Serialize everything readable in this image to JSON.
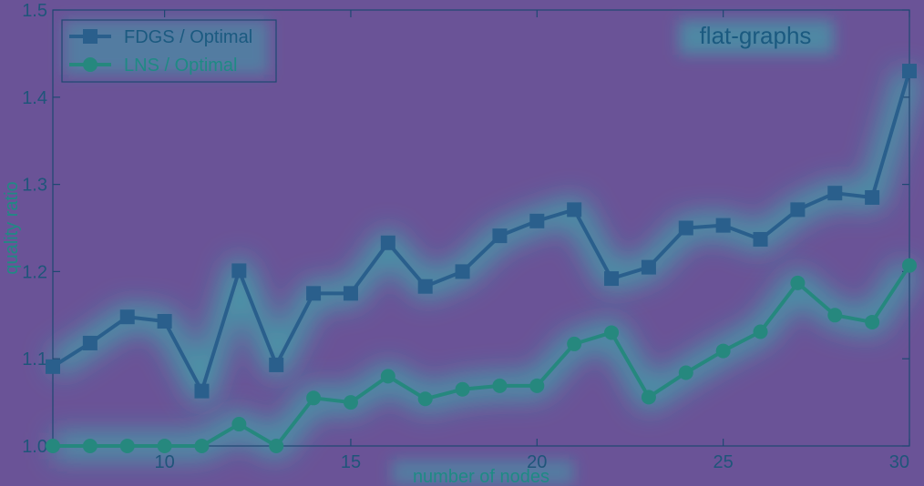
{
  "chart_data": {
    "type": "line",
    "title": "flat-graphs",
    "xlabel": "number of nodes",
    "ylabel": "quality ratio",
    "xlim": [
      7,
      30
    ],
    "ylim": [
      1.0,
      1.5
    ],
    "xticks": [
      "10",
      "15",
      "20",
      "25",
      "30"
    ],
    "yticks": [
      "1.0",
      "1.1",
      "1.2",
      "1.3",
      "1.4",
      "1.5"
    ],
    "grid": false,
    "legend": "top-left",
    "x": [
      7,
      8,
      9,
      10,
      11,
      12,
      13,
      14,
      15,
      16,
      17,
      18,
      19,
      20,
      21,
      22,
      23,
      24,
      25,
      26,
      27,
      28,
      29,
      30
    ],
    "series": [
      {
        "name": "FDGS / Optimal",
        "marker": "square",
        "color": "#2a5f8c",
        "values": [
          1.091,
          1.118,
          1.148,
          1.143,
          1.063,
          1.201,
          1.093,
          1.175,
          1.175,
          1.233,
          1.183,
          1.2,
          1.241,
          1.258,
          1.271,
          1.192,
          1.205,
          1.25,
          1.253,
          1.237,
          1.271,
          1.29,
          1.285,
          1.43
        ]
      },
      {
        "name": "LNS / Optimal",
        "marker": "circle",
        "color": "#26887e",
        "values": [
          1.0,
          1.0,
          1.0,
          1.0,
          1.0,
          1.025,
          1.0,
          1.055,
          1.05,
          1.08,
          1.054,
          1.065,
          1.069,
          1.069,
          1.117,
          1.13,
          1.056,
          1.084,
          1.109,
          1.131,
          1.187,
          1.15,
          1.142,
          1.207
        ]
      }
    ]
  },
  "colors": {
    "background": "#6a5397",
    "axis": "#1e4872",
    "tick_text": "#1f557a",
    "label_text": "#1f8a84",
    "title_text": "#1b5a80",
    "glow": "#2fc8b4"
  }
}
